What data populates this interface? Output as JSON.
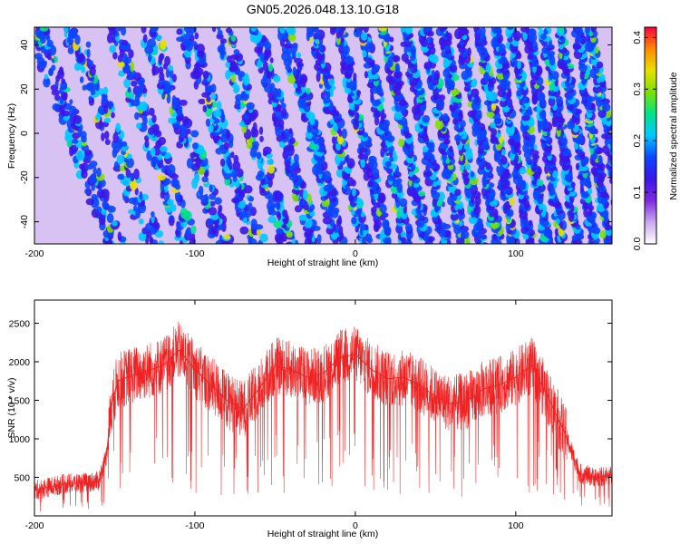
{
  "title": "GN05.2026.048.13.10.G18",
  "chart_data": [
    {
      "type": "heatmap",
      "xlabel": "Height of straight line (km)",
      "ylabel": "Frequency (Hz)",
      "xlim": [
        -200,
        160
      ],
      "ylim": [
        -50,
        48
      ],
      "x_ticks": [
        "-200",
        "-100",
        "0",
        "100"
      ],
      "y_ticks": [
        "-40",
        "-20",
        "0",
        "20",
        "40"
      ],
      "x_tick_values": [
        -200,
        -100,
        0,
        100
      ],
      "y_tick_values": [
        -40,
        -20,
        0,
        20,
        40
      ],
      "colorbar": {
        "label": "Normalized spectral amplitude",
        "range": [
          0.0,
          0.42
        ],
        "ticks": [
          "0.0",
          "0.1",
          "0.2",
          "0.3",
          "0.4"
        ],
        "tick_values": [
          0.0,
          0.1,
          0.2,
          0.3,
          0.4
        ],
        "colormap": [
          "#ffffff",
          "#c9a8f0",
          "#7e2ae0",
          "#3a16e8",
          "#0b46ff",
          "#00c8ff",
          "#00e38a",
          "#7de000",
          "#e8e000",
          "#ff8a00",
          "#ff0040"
        ]
      },
      "pattern": "diagonal stripes of high amplitude, spacing increasing toward negative heights",
      "stripe_crossings_at_zero_hz": [
        -175,
        -152,
        -128,
        -106,
        -84,
        -63,
        -44,
        -27,
        -11,
        4,
        18,
        31,
        43,
        55,
        66,
        77,
        88,
        98,
        108,
        118,
        128,
        138,
        148,
        157
      ]
    },
    {
      "type": "line",
      "color": "#ee2222",
      "xlabel": "Height of straight line (km)",
      "ylabel": "SNR (10 * v/v)",
      "xlim": [
        -200,
        160
      ],
      "ylim": [
        0,
        2800
      ],
      "x_ticks": [
        "-200",
        "-100",
        "0",
        "100"
      ],
      "y_ticks": [
        "500",
        "1000",
        "1500",
        "2000",
        "2500"
      ],
      "x_tick_values": [
        -200,
        -100,
        0,
        100
      ],
      "y_tick_values": [
        500,
        1000,
        1500,
        2000,
        2500
      ],
      "x": [
        -200,
        -190,
        -180,
        -170,
        -160,
        -155,
        -152,
        -148,
        -140,
        -130,
        -120,
        -110,
        -100,
        -90,
        -80,
        -70,
        -60,
        -50,
        -40,
        -30,
        -20,
        -10,
        0,
        10,
        20,
        30,
        40,
        50,
        60,
        70,
        80,
        90,
        100,
        110,
        120,
        130,
        140,
        150,
        160
      ],
      "y": [
        330,
        380,
        420,
        430,
        450,
        800,
        1450,
        1750,
        1820,
        1880,
        1950,
        2150,
        1900,
        1700,
        1500,
        1380,
        1650,
        1950,
        1900,
        1800,
        1850,
        2050,
        2100,
        1900,
        1780,
        1800,
        1700,
        1550,
        1450,
        1500,
        1650,
        1700,
        1800,
        1950,
        1550,
        1100,
        550,
        500,
        520
      ]
    }
  ]
}
